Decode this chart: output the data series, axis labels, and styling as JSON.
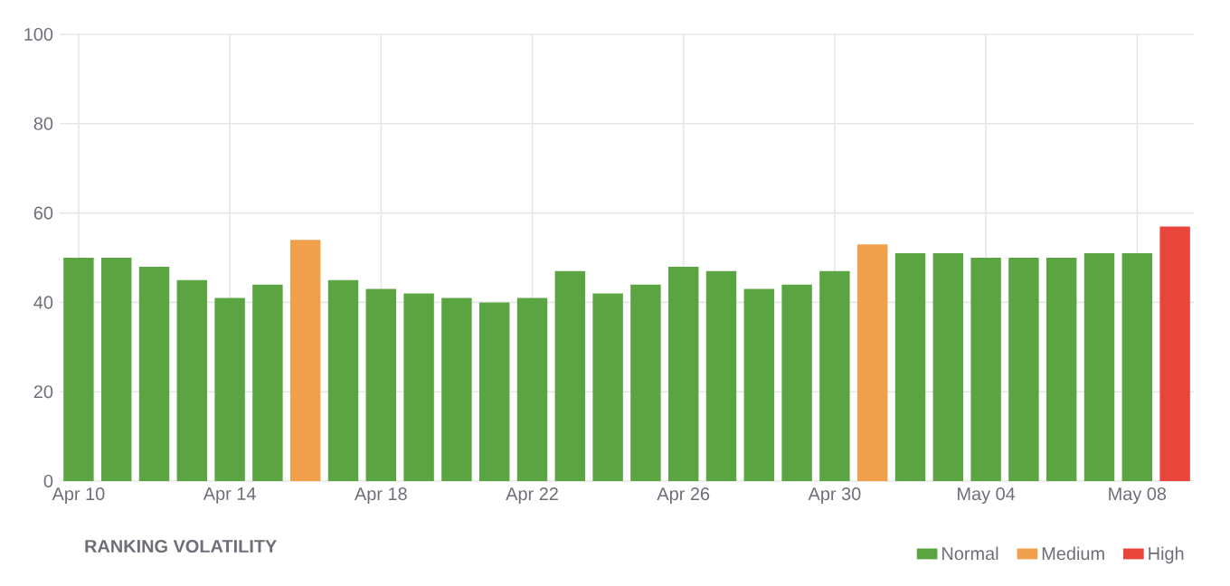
{
  "chart_data": {
    "type": "bar",
    "title": "RANKING VOLATILITY",
    "categories": [
      "Apr 10",
      null,
      null,
      null,
      "Apr 14",
      null,
      null,
      null,
      "Apr 18",
      null,
      null,
      null,
      "Apr 22",
      null,
      null,
      null,
      "Apr 26",
      null,
      null,
      null,
      "Apr 30",
      null,
      null,
      null,
      "May 04",
      null,
      null,
      null,
      "May 08",
      null
    ],
    "series": [
      {
        "name": "Normal",
        "color": "#5aa542",
        "values": [
          50,
          50,
          48,
          45,
          41,
          44,
          null,
          45,
          43,
          42,
          41,
          40,
          41,
          47,
          42,
          44,
          48,
          47,
          43,
          44,
          47,
          null,
          51,
          51,
          50,
          50,
          50,
          51,
          51,
          null
        ]
      },
      {
        "name": "Medium",
        "color": "#f0a04b",
        "values": [
          null,
          null,
          null,
          null,
          null,
          null,
          54,
          null,
          null,
          null,
          null,
          null,
          null,
          null,
          null,
          null,
          null,
          null,
          null,
          null,
          null,
          53,
          null,
          null,
          null,
          null,
          null,
          null,
          null,
          null
        ]
      },
      {
        "name": "High",
        "color": "#e8463a",
        "values": [
          null,
          null,
          null,
          null,
          null,
          null,
          null,
          null,
          null,
          null,
          null,
          null,
          null,
          null,
          null,
          null,
          null,
          null,
          null,
          null,
          null,
          null,
          null,
          null,
          null,
          null,
          null,
          null,
          null,
          57
        ]
      }
    ],
    "ylim": [
      0,
      100
    ],
    "yticks": [
      0,
      20,
      40,
      60,
      80,
      100
    ],
    "grid": true,
    "legend": "bottom right"
  }
}
